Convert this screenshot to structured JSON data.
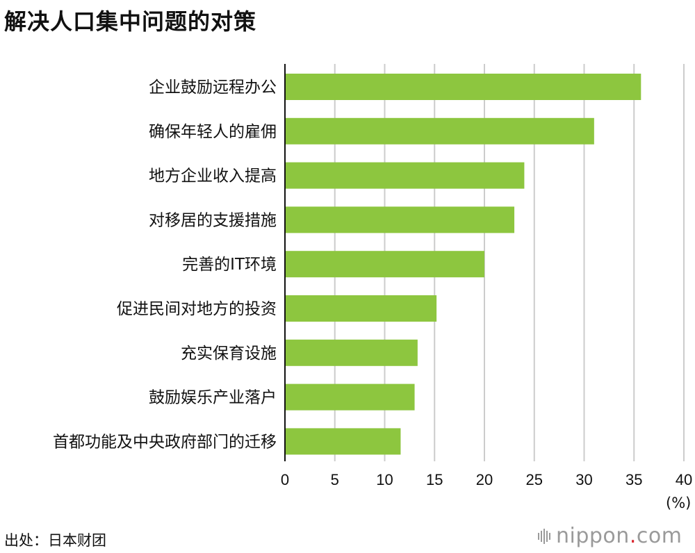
{
  "title": "解决人口集中问题的对策",
  "unit_label": "(%)",
  "source": "出处：日本财团",
  "logo": {
    "name": "nippon",
    "dot": ".",
    "tld": "com"
  },
  "colors": {
    "bar": "#8dc63f",
    "grid": "#cccccc",
    "axis": "#111111"
  },
  "chart_data": {
    "type": "bar",
    "orientation": "horizontal",
    "title": "解决人口集中问题的对策",
    "xlabel": "(%)",
    "ylabel": "",
    "xlim": [
      0,
      40
    ],
    "ticks": [
      0,
      5,
      10,
      15,
      20,
      25,
      30,
      35,
      40
    ],
    "grid": true,
    "categories": [
      "企业鼓励远程办公",
      "确保年轻人的雇佣",
      "地方企业收入提高",
      "对移居的支援措施",
      "完善的IT环境",
      "促进民间对地方的投资",
      "充实保育设施",
      "鼓励娱乐产业落户",
      "首都功能及中央政府部门的迁移"
    ],
    "values": [
      35.7,
      31.0,
      24.0,
      23.0,
      20.0,
      15.2,
      13.3,
      13.0,
      11.6
    ]
  }
}
